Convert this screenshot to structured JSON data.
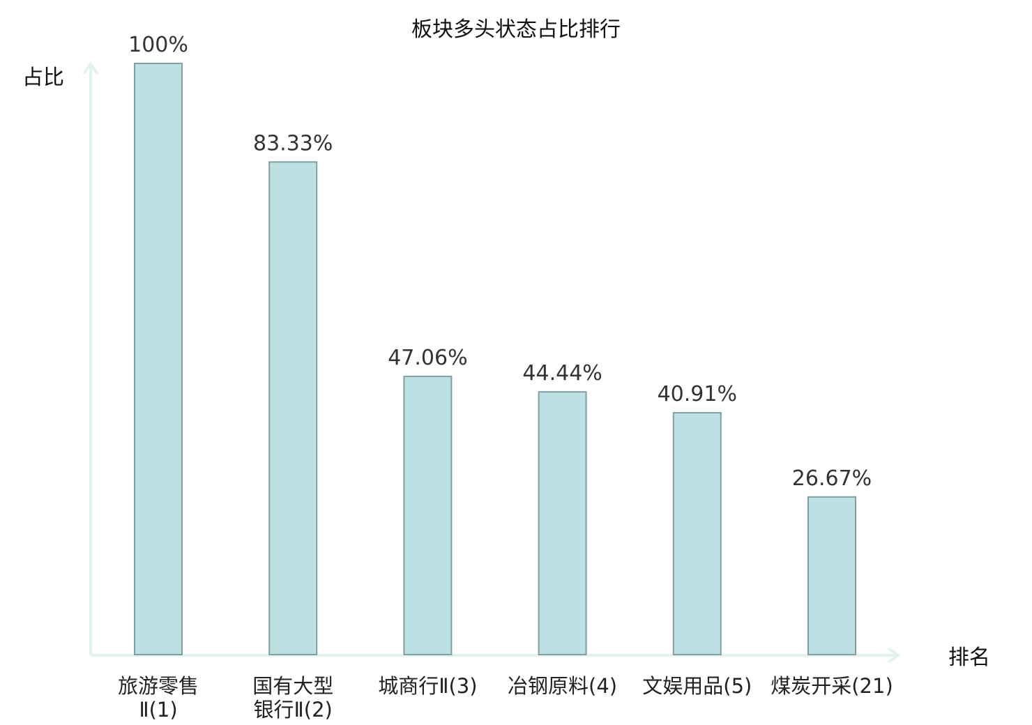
{
  "chart_data": {
    "type": "bar",
    "title": "板块多头状态占比排行",
    "ylabel": "占比",
    "xlabel": "排名",
    "ylim": [
      0,
      100
    ],
    "grid": false,
    "categories": [
      [
        "旅游零售",
        "Ⅱ(1)"
      ],
      [
        "国有大型",
        "银行Ⅱ(2)"
      ],
      [
        "城商行Ⅱ(3)"
      ],
      [
        "冶钢原料(4)"
      ],
      [
        "文娱用品(5)"
      ],
      [
        "煤炭开采(21)"
      ]
    ],
    "values": [
      100,
      83.33,
      47.06,
      44.44,
      40.91,
      26.67
    ],
    "data_labels": [
      "100%",
      "83.33%",
      "47.06%",
      "44.44%",
      "40.91%",
      "26.67%"
    ],
    "category_highlight": [
      false,
      false,
      false,
      false,
      false,
      true
    ],
    "colors": {
      "bar_fill": "#bde0e2",
      "bar_stroke": "#7f9fa3",
      "axis": "#e0f3f1",
      "highlight_text": "#e02020",
      "text": "#222222"
    }
  }
}
